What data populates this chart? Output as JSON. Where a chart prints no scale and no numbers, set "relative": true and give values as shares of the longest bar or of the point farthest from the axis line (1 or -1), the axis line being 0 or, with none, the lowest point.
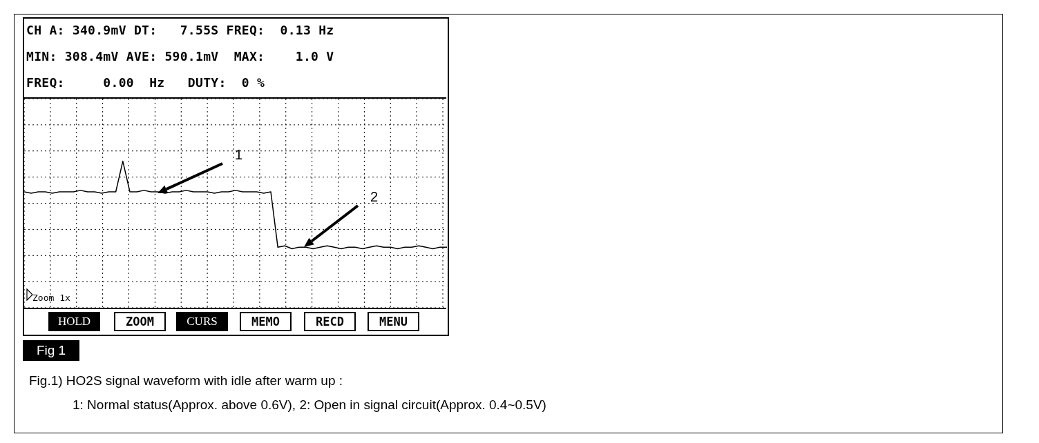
{
  "chart_data": {
    "type": "line",
    "title": "Fig 1",
    "relative": true,
    "annotations": [
      "CH A: 340.9mV DT:   7.55S FREQ:  0.13 Hz",
      "MIN: 308.4mV AVE: 590.1mV  MAX:    1.0 V",
      "FREQ:     0.00  Hz   DUTY:  0 %",
      "Zoom 1x",
      "HOLD",
      "ZOOM",
      "CURS",
      "MEMO",
      "RECD",
      "MENU",
      "Fig.1) HO2S signal waveform with idle after warm up :",
      "1: Normal status(Approx. above 0.6V), 2: Open in signal circuit(Approx. 0.4~0.5V)",
      "1",
      "2"
    ],
    "categories": [
      null,
      null,
      null,
      null,
      null,
      null,
      null,
      null,
      null,
      null,
      null,
      null,
      null,
      null,
      null,
      null,
      null,
      null,
      null,
      null,
      null,
      null,
      null,
      null,
      null,
      null,
      null,
      null,
      null,
      null,
      null,
      null,
      null,
      null,
      null,
      null,
      null,
      null,
      null,
      null,
      null,
      null,
      null,
      null,
      null,
      null,
      null,
      null,
      null,
      null,
      null,
      null,
      null,
      null,
      null,
      null,
      null,
      null,
      null,
      null,
      null
    ],
    "series": [
      {
        "color": "#000000",
        "values": [
          0.79,
          0.78,
          0.79,
          0.79,
          0.78,
          0.79,
          0.79,
          0.79,
          0.8,
          0.79,
          0.79,
          0.78,
          0.79,
          0.79,
          1,
          0.79,
          0.79,
          0.8,
          0.79,
          0.79,
          0.78,
          0.79,
          0.79,
          0.8,
          0.79,
          0.79,
          0.79,
          0.78,
          0.79,
          0.79,
          0.8,
          0.79,
          0.79,
          0.79,
          0.78,
          0.79,
          0.41,
          0.42,
          0.4,
          0.41,
          0.41,
          0.4,
          0.41,
          0.42,
          0.41,
          0.4,
          0.41,
          0.41,
          0.4,
          0.41,
          0.42,
          0.41,
          0.41,
          0.4,
          0.41,
          0.41,
          0.42,
          0.41,
          0.4,
          0.41,
          0.41
        ]
      }
    ],
    "grid": true,
    "marker": "none",
    "line_style": "solid"
  }
}
